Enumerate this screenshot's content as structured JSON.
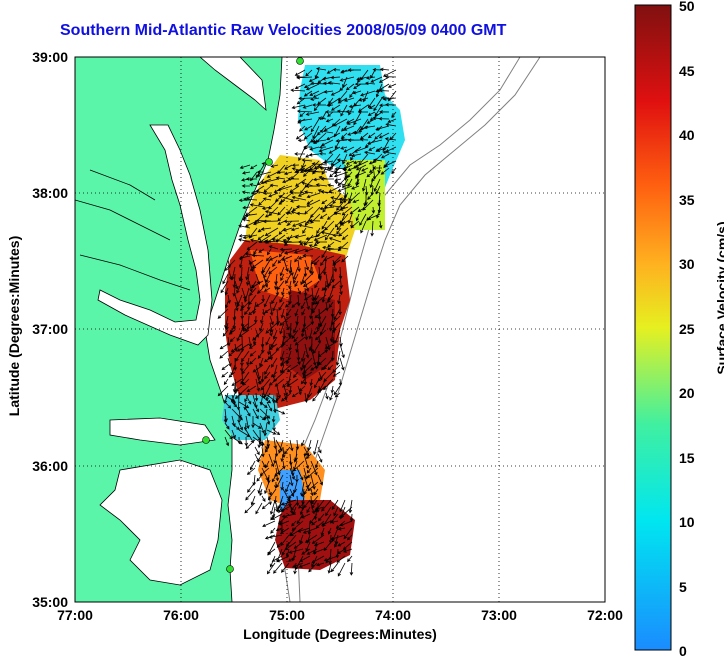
{
  "title": "Southern Mid-Atlantic Raw Velocities 2008/05/09 0400 GMT",
  "xlabel": "Longitude (Degrees:Minutes)",
  "ylabel": "Latitude (Degrees:Minutes)",
  "colorbar": {
    "label": "Surface Velocity (cm/s)",
    "range": [
      0,
      50
    ],
    "ticks": [
      "0",
      "5",
      "10",
      "15",
      "20",
      "25",
      "30",
      "35",
      "40",
      "45",
      "50"
    ]
  },
  "map": {
    "lon_ticks": [
      "77:00",
      "76:00",
      "75:00",
      "74:00",
      "73:00",
      "72:00"
    ],
    "lat_ticks": [
      "35:00",
      "36:00",
      "37:00",
      "38:00",
      "39:00"
    ],
    "lon_range": [
      -77,
      -72
    ],
    "lat_range": [
      35,
      39
    ],
    "grid": "dotted",
    "land_color": "#5af5a8"
  }
}
